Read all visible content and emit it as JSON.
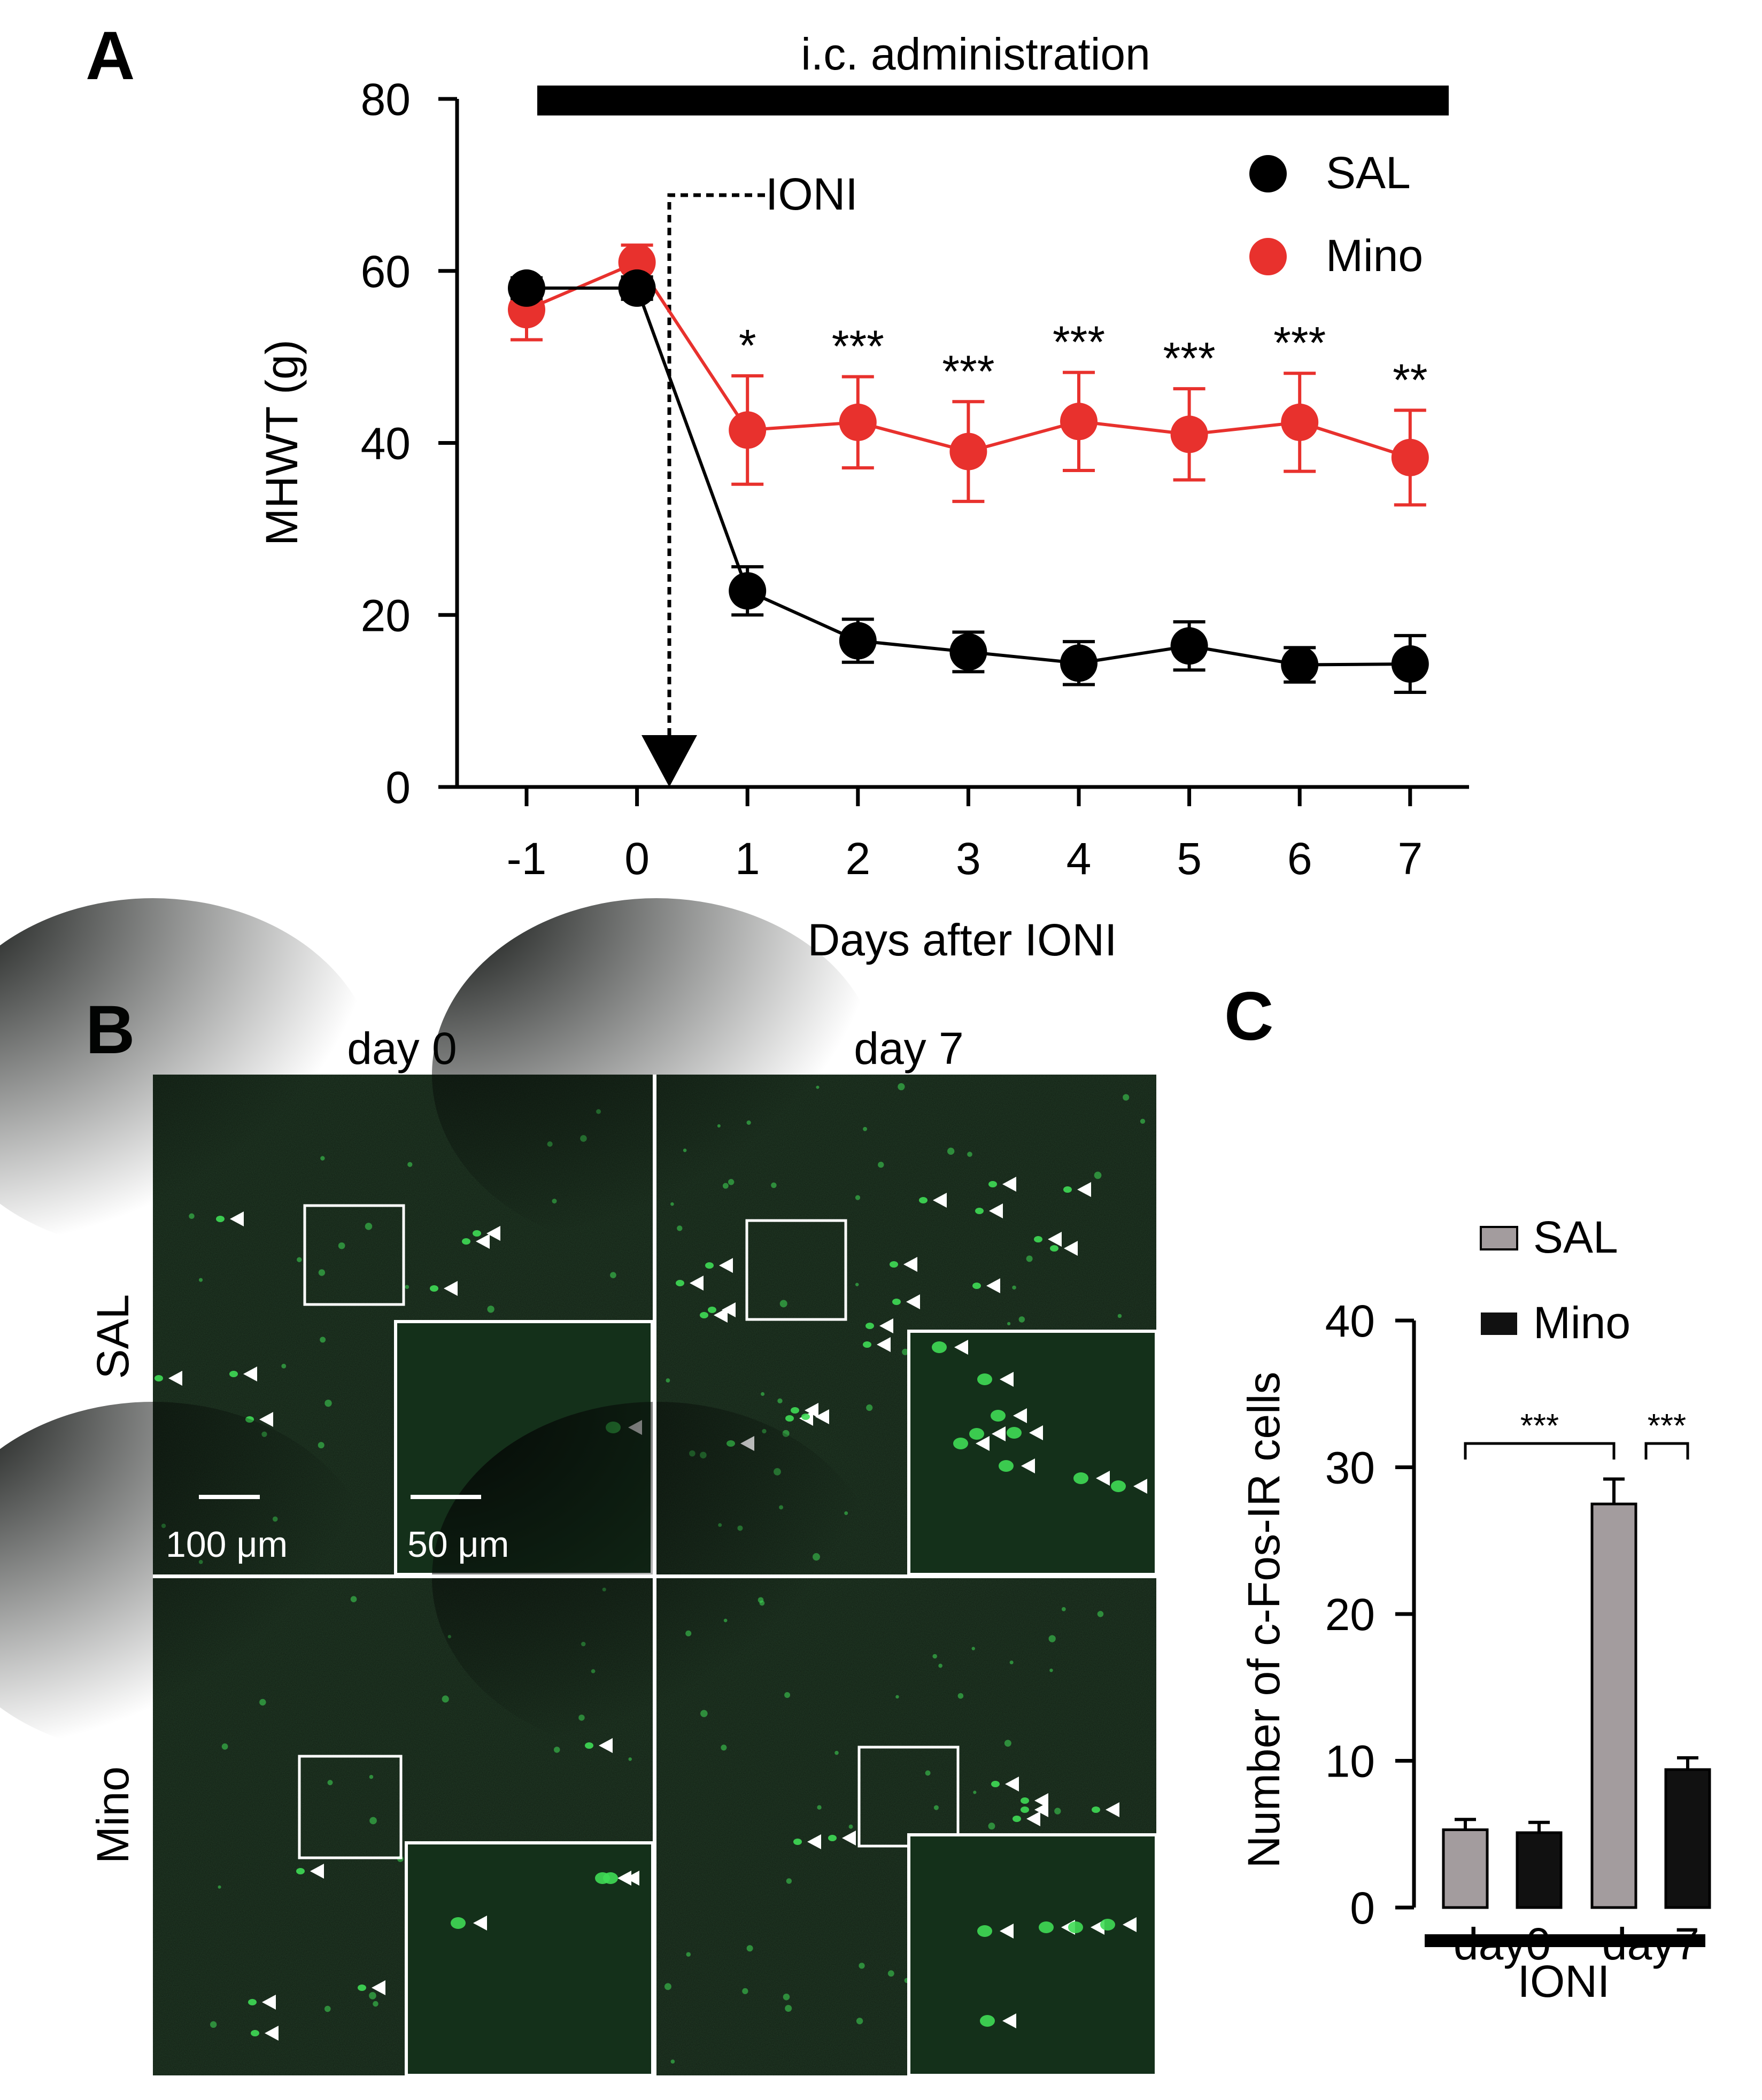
{
  "panels": {
    "a": "A",
    "b": "B",
    "c": "C"
  },
  "colors": {
    "sal_line": "#000000",
    "mino_line": "#e8312d",
    "sal_bar": "#a39c9e",
    "mino_bar": "#111111",
    "micrograph_bg": "#0f1a11",
    "cell_green": "#3fdc55"
  },
  "chart_data": [
    {
      "panel": "A",
      "type": "line",
      "ylabel": "MHWT (g)",
      "xlabel": "Days after IONI",
      "ylim": [
        0,
        80
      ],
      "yticks": [
        "0",
        "20",
        "40",
        "60",
        "80"
      ],
      "x": [
        -1,
        0,
        1,
        2,
        3,
        4,
        5,
        6,
        7
      ],
      "xticks": [
        "-1",
        "0",
        "1",
        "2",
        "3",
        "4",
        "5",
        "6",
        "7"
      ],
      "series": [
        {
          "name": "SAL",
          "values": [
            58,
            58,
            22.8,
            17,
            15.7,
            14.4,
            16.4,
            14.2,
            14.3
          ],
          "errors": [
            1.2,
            1.3,
            2.8,
            2.5,
            2.3,
            2.5,
            2.8,
            2.0,
            3.3
          ]
        },
        {
          "name": "Mino",
          "values": [
            55.5,
            61,
            41.5,
            42.4,
            39,
            42.5,
            41,
            42.4,
            38.3
          ],
          "errors": [
            3.5,
            2.0,
            6.3,
            5.3,
            5.8,
            5.7,
            5.3,
            5.7,
            5.5
          ]
        }
      ],
      "significance": [
        "",
        "",
        "*",
        "***",
        "***",
        "***",
        "***",
        "***",
        "**"
      ],
      "annotations": {
        "top_bar": "i.c. administration",
        "ioni": "IONI"
      }
    },
    {
      "panel": "C",
      "type": "bar",
      "ylabel": "Number of c-Fos-IR cells",
      "ylim": [
        0,
        40
      ],
      "yticks": [
        "0",
        "10",
        "20",
        "30",
        "40"
      ],
      "categories": [
        "day0",
        "day7"
      ],
      "series": [
        {
          "name": "SAL",
          "values": [
            5.3,
            27.5
          ],
          "errors": [
            0.7,
            1.7
          ]
        },
        {
          "name": "Mino",
          "values": [
            5.1,
            9.4
          ],
          "errors": [
            0.7,
            0.8
          ]
        }
      ],
      "significance": [
        "***",
        "***"
      ],
      "group_label": "IONI"
    }
  ],
  "micrographs": {
    "col_labels": [
      "day 0",
      "day 7"
    ],
    "row_labels": [
      "SAL",
      "Mino"
    ],
    "scalebar_main": "100 μm",
    "scalebar_inset": "50 μm"
  }
}
